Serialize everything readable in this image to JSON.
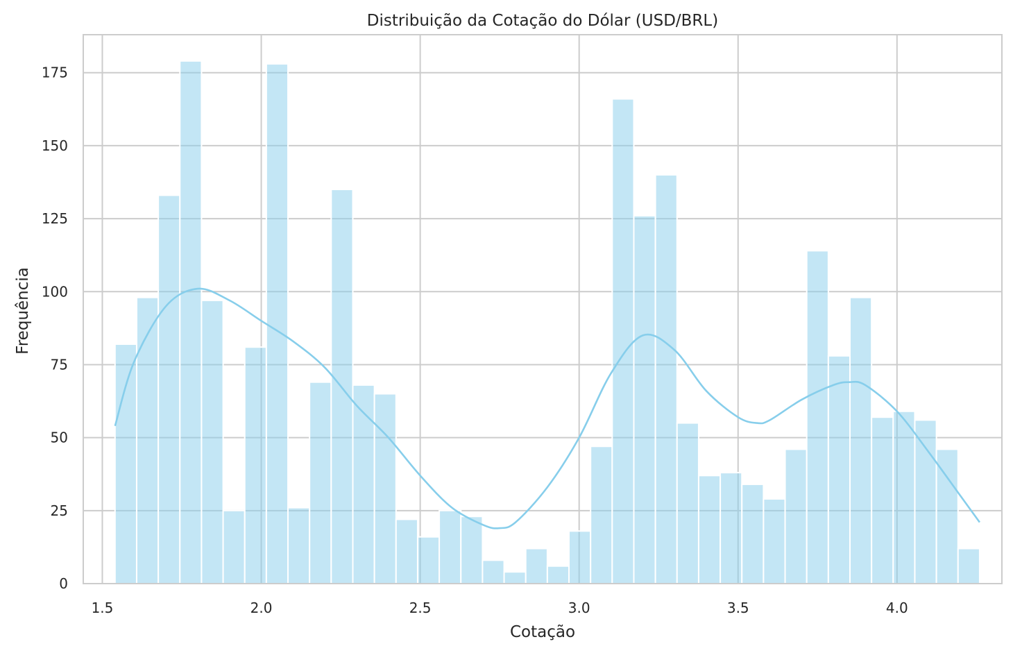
{
  "chart_data": {
    "type": "bar",
    "title": "Distribuição da Cotação do Dólar (USD/BRL)",
    "xlabel": "Cotação",
    "ylabel": "Frequência",
    "xlim": [
      1.44,
      4.33
    ],
    "ylim": [
      0,
      188
    ],
    "xticks": [
      1.5,
      2.0,
      2.5,
      3.0,
      3.5,
      4.0
    ],
    "xtick_labels": [
      "1.5",
      "2.0",
      "2.5",
      "3.0",
      "3.5",
      "4.0"
    ],
    "yticks": [
      0,
      25,
      50,
      75,
      100,
      125,
      150,
      175
    ],
    "ytick_labels": [
      "0",
      "25",
      "50",
      "75",
      "100",
      "125",
      "150",
      "175"
    ],
    "grid": true,
    "bin_start": 1.54,
    "bin_width": 0.068,
    "values": [
      82,
      98,
      133,
      179,
      97,
      25,
      81,
      178,
      26,
      69,
      135,
      68,
      65,
      22,
      16,
      25,
      23,
      8,
      4,
      12,
      6,
      18,
      47,
      166,
      126,
      140,
      55,
      37,
      38,
      34,
      29,
      46,
      114,
      78,
      98,
      57,
      59,
      56,
      46,
      12
    ],
    "kde": {
      "x": [
        1.54,
        1.6,
        1.7,
        1.8,
        1.9,
        2.0,
        2.1,
        2.2,
        2.3,
        2.4,
        2.5,
        2.6,
        2.7,
        2.75,
        2.8,
        2.9,
        3.0,
        3.1,
        3.2,
        3.3,
        3.4,
        3.5,
        3.56,
        3.6,
        3.7,
        3.8,
        3.85,
        3.9,
        4.0,
        4.1,
        4.2,
        4.26
      ],
      "y": [
        54,
        76,
        95,
        101,
        97,
        90,
        83,
        74,
        61,
        50,
        37,
        26,
        20,
        19,
        21,
        33,
        50,
        72,
        85,
        80,
        66,
        57,
        55,
        56,
        63,
        68,
        69,
        68,
        59,
        45,
        30,
        21
      ]
    },
    "bar_color": "#87CEEB",
    "bar_opacity": 0.5,
    "line_color": "#87CEEB",
    "grid_color": "#cccccc",
    "spine_color": "#cccccc"
  }
}
